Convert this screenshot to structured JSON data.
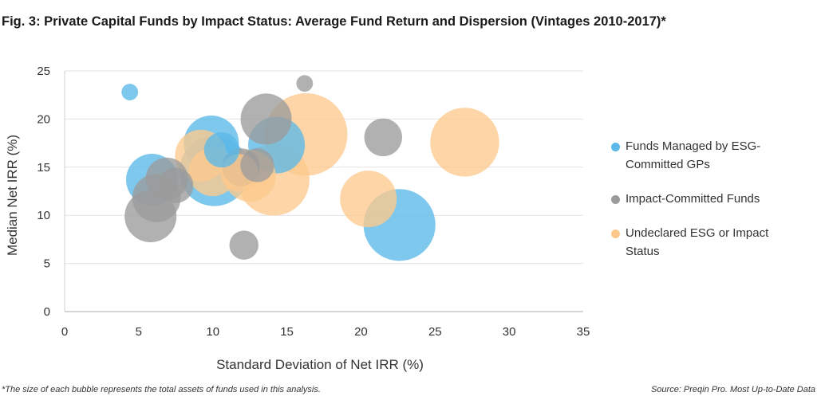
{
  "title": "Fig. 3: Private Capital Funds by Impact Status: Average Fund Return and Dispersion (Vintages 2010-2017)*",
  "footnote": "*The size of each bubble represents the total assets of funds used in this analysis.",
  "source": "Source: Preqin Pro. Most Up-to-Date Data",
  "colors": {
    "esg": "#5bb8e8",
    "impact": "#9b9b9b",
    "undeclared": "#fcc98d"
  },
  "chart_data": {
    "type": "scatter",
    "subtype": "bubble",
    "xlabel": "Standard Deviation of Net IRR (%)",
    "ylabel": "Median Net IRR (%)",
    "xlim": [
      0,
      35
    ],
    "ylim": [
      0,
      25
    ],
    "x_ticks": [
      "0",
      "5",
      "10",
      "15",
      "20",
      "25",
      "30",
      "35"
    ],
    "y_ticks": [
      "0",
      "5",
      "10",
      "15",
      "20",
      "25"
    ],
    "grid": "horizontal",
    "legend_position": "right",
    "series": [
      {
        "name": "Funds Managed by ESG-Committed GPs",
        "color_key": "esg",
        "points": [
          {
            "x": 4.4,
            "y": 22.8,
            "size": 1
          },
          {
            "x": 5.9,
            "y": 13.7,
            "size": 26
          },
          {
            "x": 9.9,
            "y": 17.5,
            "size": 30
          },
          {
            "x": 10.1,
            "y": 14.6,
            "size": 52
          },
          {
            "x": 10.6,
            "y": 16.8,
            "size": 10
          },
          {
            "x": 14.3,
            "y": 17.3,
            "size": 32
          },
          {
            "x": 22.6,
            "y": 9.0,
            "size": 55
          }
        ]
      },
      {
        "name": "Impact-Committed Funds",
        "color_key": "impact",
        "points": [
          {
            "x": 16.2,
            "y": 23.7,
            "size": 1
          },
          {
            "x": 13.6,
            "y": 20.0,
            "size": 25
          },
          {
            "x": 21.5,
            "y": 18.1,
            "size": 12
          },
          {
            "x": 6.9,
            "y": 13.8,
            "size": 16
          },
          {
            "x": 7.5,
            "y": 13.1,
            "size": 10
          },
          {
            "x": 6.2,
            "y": 11.8,
            "size": 22
          },
          {
            "x": 5.8,
            "y": 9.9,
            "size": 26
          },
          {
            "x": 12.1,
            "y": 6.9,
            "size": 6
          },
          {
            "x": 11.9,
            "y": 15.0,
            "size": 12
          },
          {
            "x": 13.0,
            "y": 15.2,
            "size": 9
          }
        ]
      },
      {
        "name": "Undeclared ESG or Impact Status",
        "color_key": "undeclared",
        "points": [
          {
            "x": 16.3,
            "y": 18.4,
            "size": 75
          },
          {
            "x": 27.0,
            "y": 17.6,
            "size": 50
          },
          {
            "x": 9.2,
            "y": 16.2,
            "size": 26
          },
          {
            "x": 10.0,
            "y": 14.5,
            "size": 22
          },
          {
            "x": 12.5,
            "y": 14.1,
            "size": 26
          },
          {
            "x": 14.1,
            "y": 13.7,
            "size": 55
          },
          {
            "x": 11.8,
            "y": 14.4,
            "size": 12
          },
          {
            "x": 20.5,
            "y": 11.7,
            "size": 32
          }
        ]
      }
    ]
  }
}
